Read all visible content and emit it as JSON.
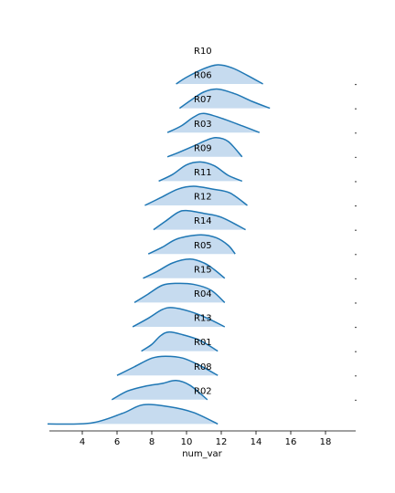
{
  "chart_data": {
    "type": "area",
    "subtype": "ridgeline",
    "xlabel": "num_var",
    "x_ticks": [
      4,
      6,
      8,
      10,
      12,
      14,
      16,
      18
    ],
    "xlim": [
      1.8,
      19.8
    ],
    "line_color": "#1f77b4",
    "fill_color": "#c6dbef",
    "rows": [
      {
        "label": "R10",
        "peak": 11.8,
        "values": [
          {
            "x": 9.4,
            "y": 0.0
          },
          {
            "x": 10.0,
            "y": 0.35
          },
          {
            "x": 11.0,
            "y": 0.8
          },
          {
            "x": 11.8,
            "y": 1.0
          },
          {
            "x": 12.6,
            "y": 0.85
          },
          {
            "x": 13.5,
            "y": 0.45
          },
          {
            "x": 14.4,
            "y": 0.0
          }
        ]
      },
      {
        "label": "R06",
        "peak": 11.8,
        "values": [
          {
            "x": 9.6,
            "y": 0.0
          },
          {
            "x": 10.3,
            "y": 0.45
          },
          {
            "x": 11.0,
            "y": 0.85
          },
          {
            "x": 11.8,
            "y": 1.0
          },
          {
            "x": 12.8,
            "y": 0.75
          },
          {
            "x": 13.8,
            "y": 0.35
          },
          {
            "x": 14.8,
            "y": 0.0
          }
        ]
      },
      {
        "label": "R07",
        "peak": 11.0,
        "values": [
          {
            "x": 8.9,
            "y": 0.0
          },
          {
            "x": 9.7,
            "y": 0.35
          },
          {
            "x": 10.4,
            "y": 0.8
          },
          {
            "x": 11.0,
            "y": 1.0
          },
          {
            "x": 12.0,
            "y": 0.75
          },
          {
            "x": 13.2,
            "y": 0.35
          },
          {
            "x": 14.2,
            "y": 0.0
          }
        ]
      },
      {
        "label": "R03",
        "peak": 11.7,
        "values": [
          {
            "x": 8.9,
            "y": 0.0
          },
          {
            "x": 9.6,
            "y": 0.25
          },
          {
            "x": 10.5,
            "y": 0.6
          },
          {
            "x": 11.1,
            "y": 0.85
          },
          {
            "x": 11.7,
            "y": 1.0
          },
          {
            "x": 12.4,
            "y": 0.8
          },
          {
            "x": 13.2,
            "y": 0.0
          }
        ]
      },
      {
        "label": "R09",
        "peak": 10.8,
        "values": [
          {
            "x": 8.4,
            "y": 0.0
          },
          {
            "x": 9.2,
            "y": 0.35
          },
          {
            "x": 10.0,
            "y": 0.85
          },
          {
            "x": 10.8,
            "y": 1.0
          },
          {
            "x": 11.6,
            "y": 0.8
          },
          {
            "x": 12.4,
            "y": 0.3
          },
          {
            "x": 13.2,
            "y": 0.0
          }
        ]
      },
      {
        "label": "R11",
        "peak": 10.4,
        "values": [
          {
            "x": 7.6,
            "y": 0.0
          },
          {
            "x": 8.5,
            "y": 0.4
          },
          {
            "x": 9.5,
            "y": 0.85
          },
          {
            "x": 10.4,
            "y": 1.0
          },
          {
            "x": 11.5,
            "y": 0.85
          },
          {
            "x": 12.5,
            "y": 0.65
          },
          {
            "x": 13.5,
            "y": 0.0
          }
        ]
      },
      {
        "label": "R12",
        "peak": 10.0,
        "values": [
          {
            "x": 8.1,
            "y": 0.0
          },
          {
            "x": 8.8,
            "y": 0.45
          },
          {
            "x": 9.5,
            "y": 0.9
          },
          {
            "x": 10.0,
            "y": 1.0
          },
          {
            "x": 11.0,
            "y": 0.85
          },
          {
            "x": 12.0,
            "y": 0.65
          },
          {
            "x": 13.4,
            "y": 0.0
          }
        ]
      },
      {
        "label": "R14",
        "peak": 10.8,
        "values": [
          {
            "x": 7.8,
            "y": 0.0
          },
          {
            "x": 8.6,
            "y": 0.35
          },
          {
            "x": 9.5,
            "y": 0.8
          },
          {
            "x": 10.8,
            "y": 1.0
          },
          {
            "x": 11.7,
            "y": 0.85
          },
          {
            "x": 12.4,
            "y": 0.45
          },
          {
            "x": 12.8,
            "y": 0.0
          }
        ]
      },
      {
        "label": "R05",
        "peak": 10.2,
        "values": [
          {
            "x": 7.5,
            "y": 0.0
          },
          {
            "x": 8.3,
            "y": 0.35
          },
          {
            "x": 9.2,
            "y": 0.8
          },
          {
            "x": 10.2,
            "y": 1.0
          },
          {
            "x": 11.0,
            "y": 0.8
          },
          {
            "x": 11.6,
            "y": 0.45
          },
          {
            "x": 12.2,
            "y": 0.0
          }
        ]
      },
      {
        "label": "R15",
        "peak": 9.4,
        "values": [
          {
            "x": 7.0,
            "y": 0.0
          },
          {
            "x": 7.8,
            "y": 0.45
          },
          {
            "x": 8.6,
            "y": 0.9
          },
          {
            "x": 9.4,
            "y": 1.0
          },
          {
            "x": 10.4,
            "y": 0.95
          },
          {
            "x": 11.4,
            "y": 0.65
          },
          {
            "x": 12.2,
            "y": 0.0
          }
        ]
      },
      {
        "label": "R04",
        "peak": 9.2,
        "values": [
          {
            "x": 6.9,
            "y": 0.0
          },
          {
            "x": 7.8,
            "y": 0.45
          },
          {
            "x": 8.6,
            "y": 0.9
          },
          {
            "x": 9.2,
            "y": 1.0
          },
          {
            "x": 10.2,
            "y": 0.8
          },
          {
            "x": 11.2,
            "y": 0.45
          },
          {
            "x": 12.2,
            "y": 0.0
          }
        ]
      },
      {
        "label": "R13",
        "peak": 9.0,
        "values": [
          {
            "x": 7.4,
            "y": 0.0
          },
          {
            "x": 8.0,
            "y": 0.35
          },
          {
            "x": 8.5,
            "y": 0.8
          },
          {
            "x": 9.0,
            "y": 1.0
          },
          {
            "x": 9.8,
            "y": 0.85
          },
          {
            "x": 10.8,
            "y": 0.55
          },
          {
            "x": 11.8,
            "y": 0.0
          }
        ]
      },
      {
        "label": "R01",
        "peak": 8.8,
        "values": [
          {
            "x": 6.0,
            "y": 0.0
          },
          {
            "x": 7.0,
            "y": 0.45
          },
          {
            "x": 8.0,
            "y": 0.9
          },
          {
            "x": 8.8,
            "y": 1.0
          },
          {
            "x": 9.8,
            "y": 0.9
          },
          {
            "x": 10.8,
            "y": 0.5
          },
          {
            "x": 11.8,
            "y": 0.0
          }
        ]
      },
      {
        "label": "R08",
        "peak": 9.4,
        "values": [
          {
            "x": 5.7,
            "y": 0.0
          },
          {
            "x": 6.6,
            "y": 0.45
          },
          {
            "x": 7.6,
            "y": 0.7
          },
          {
            "x": 8.6,
            "y": 0.85
          },
          {
            "x": 9.4,
            "y": 1.0
          },
          {
            "x": 10.2,
            "y": 0.75
          },
          {
            "x": 11.2,
            "y": 0.0
          }
        ]
      },
      {
        "label": "R02",
        "peak": 7.5,
        "values": [
          {
            "x": 2.0,
            "y": 0.0
          },
          {
            "x": 4.5,
            "y": 0.05
          },
          {
            "x": 6.3,
            "y": 0.55
          },
          {
            "x": 7.5,
            "y": 1.0
          },
          {
            "x": 9.0,
            "y": 0.9
          },
          {
            "x": 10.4,
            "y": 0.6
          },
          {
            "x": 11.8,
            "y": 0.0
          }
        ]
      }
    ]
  }
}
